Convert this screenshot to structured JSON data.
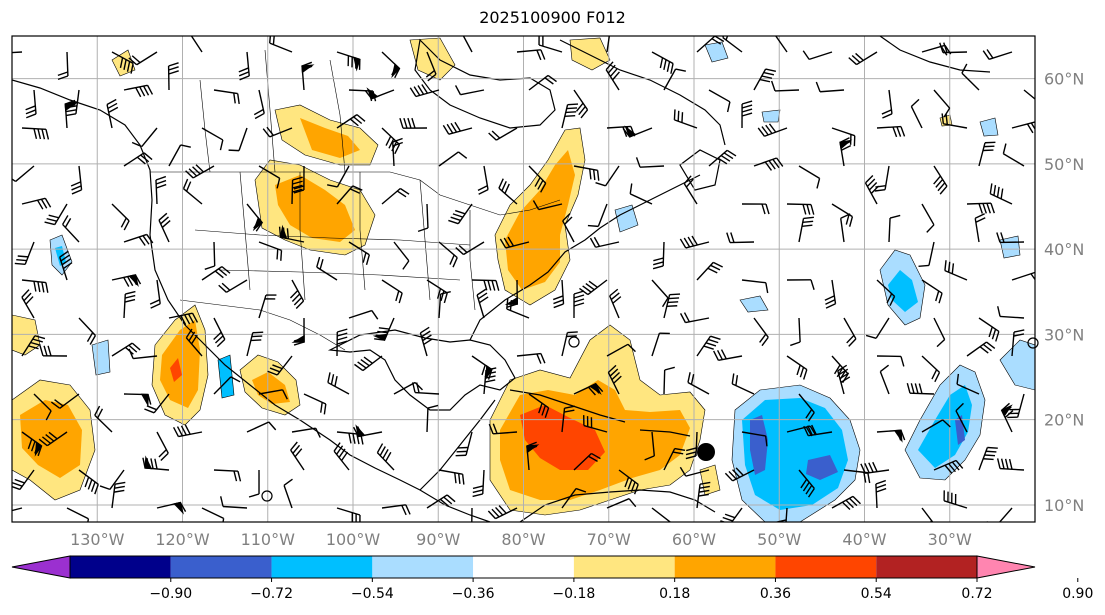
{
  "title": "2025100900 F012",
  "map": {
    "lon_range": [
      -140,
      -20
    ],
    "lat_range": [
      8,
      65
    ],
    "lon_ticks": [
      -130,
      -120,
      -110,
      -100,
      -90,
      -80,
      -70,
      -60,
      -50,
      -40,
      -30
    ],
    "lon_tick_labels": [
      "130°W",
      "120°W",
      "110°W",
      "100°W",
      "90°W",
      "80°W",
      "70°W",
      "60°W",
      "50°W",
      "40°W",
      "30°W"
    ],
    "lat_ticks": [
      10,
      20,
      30,
      40,
      50,
      60
    ],
    "lat_tick_labels": [
      "10°N",
      "20°N",
      "30°N",
      "40°N",
      "50°N",
      "60°N"
    ],
    "grid": true,
    "overlays": [
      "coastlines",
      "borders",
      "wind-barbs",
      "contour-fill"
    ]
  },
  "colorbar": {
    "levels": [
      "−0.90",
      "−0.72",
      "−0.54",
      "−0.36",
      "−0.18",
      "0.18",
      "0.36",
      "0.54",
      "0.72",
      "0.90"
    ],
    "colors": [
      "#9b30d0",
      "#00008b",
      "#3a5fcd",
      "#00bfff",
      "#aaddff",
      "#ffffff",
      "#ffe680",
      "#ffa500",
      "#ff4500",
      "#b22222",
      "#ff85b0"
    ],
    "extend": "both"
  }
}
